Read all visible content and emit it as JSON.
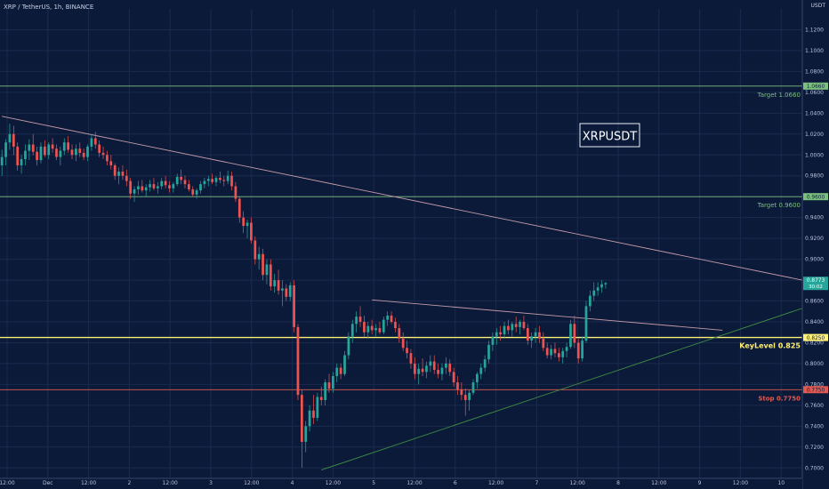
{
  "header": {
    "title": "XRP / TetherUS, 1h, BINANCE"
  },
  "axis": {
    "currency": "USDT"
  },
  "watermark": {
    "label": "XRPUSDT"
  },
  "colors": {
    "background": "#0c1a3a",
    "up": "#26a69a",
    "down": "#ef5350",
    "target": "#7bbf7e",
    "key": "#fff176",
    "stop": "#e05a52",
    "resistance": "#c49aa8",
    "support": "#3f8f43",
    "grid": "#1a2a4e",
    "axis_text": "#b9c2d9"
  },
  "chart_data": {
    "type": "candlestick",
    "y_ticks": [
      "0.7000",
      "0.7200",
      "0.7400",
      "0.7600",
      "0.7800",
      "0.8000",
      "0.8200",
      "0.8400",
      "0.8600",
      "0.8800",
      "0.9000",
      "0.9200",
      "0.9400",
      "0.9600",
      "0.9800",
      "1.0000",
      "1.0200",
      "1.0400",
      "1.0600",
      "1.0800",
      "1.1000",
      "1.1200"
    ],
    "ylim": [
      0.69,
      1.14
    ],
    "x_tick_labels": [
      "12:00",
      "Dec",
      "12:00",
      "2",
      "12:00",
      "3",
      "12:00",
      "4",
      "12:00",
      "5",
      "12:00",
      "6",
      "12:00",
      "7",
      "12:00",
      "8",
      "12:00",
      "9",
      "12:00",
      "10"
    ],
    "x_range_bars": 206,
    "levels": [
      {
        "name": "Target 1.0660",
        "price": 1.066,
        "badge": "1.0660",
        "color_key": "target"
      },
      {
        "name": "Target 0.9600",
        "price": 0.96,
        "badge": "0.9600",
        "color_key": "target"
      },
      {
        "name": "KeyLevel 0.825",
        "price": 0.825,
        "badge": "0.8250",
        "color_key": "key"
      },
      {
        "name": "Stop 0.7750",
        "price": 0.775,
        "badge": "0.7750",
        "color_key": "stop"
      }
    ],
    "trendlines": [
      {
        "name": "descending-resistance",
        "points": [
          [
            0,
            1.037
          ],
          [
            206,
            0.88
          ]
        ],
        "color_key": "resistance"
      },
      {
        "name": "ascending-support",
        "points": [
          [
            82,
            0.698
          ],
          [
            206,
            0.853
          ]
        ],
        "color_key": "support"
      },
      {
        "name": "triangle-upper",
        "points": [
          [
            95,
            0.861
          ],
          [
            185,
            0.832
          ]
        ],
        "color_key": "resistance"
      }
    ],
    "last_price": {
      "price": "0.8773",
      "countdown": "30:02",
      "value": 0.8773
    },
    "candles": [
      [
        0.99,
        1.005,
        0.98,
        0.998
      ],
      [
        0.998,
        1.015,
        0.99,
        1.012
      ],
      [
        1.012,
        1.03,
        1.005,
        1.02
      ],
      [
        1.02,
        1.028,
        1.0,
        1.008
      ],
      [
        1.008,
        1.012,
        0.985,
        0.99
      ],
      [
        0.99,
        1.0,
        0.982,
        0.996
      ],
      [
        0.996,
        1.01,
        0.99,
        1.004
      ],
      [
        1.004,
        1.015,
        0.995,
        1.01
      ],
      [
        1.01,
        1.02,
        1.0,
        1.003
      ],
      [
        1.003,
        1.008,
        0.99,
        0.995
      ],
      [
        0.995,
        1.012,
        0.992,
        1.008
      ],
      [
        1.008,
        1.014,
        0.998,
        1.0
      ],
      [
        1.0,
        1.012,
        0.996,
        1.01
      ],
      [
        1.01,
        1.016,
        1.002,
        1.006
      ],
      [
        1.006,
        1.01,
        0.995,
        0.998
      ],
      [
        0.998,
        1.008,
        0.99,
        1.004
      ],
      [
        1.004,
        1.016,
        1.0,
        1.012
      ],
      [
        1.012,
        1.018,
        1.002,
        1.005
      ],
      [
        1.005,
        1.01,
        0.996,
        1.0
      ],
      [
        1.0,
        1.01,
        0.994,
        1.006
      ],
      [
        1.006,
        1.012,
        0.998,
        1.002
      ],
      [
        1.002,
        1.006,
        0.995,
        0.998
      ],
      [
        0.998,
        1.01,
        0.994,
        1.008
      ],
      [
        1.008,
        1.02,
        1.004,
        1.016
      ],
      [
        1.016,
        1.022,
        1.006,
        1.01
      ],
      [
        1.01,
        1.014,
        0.998,
        1.002
      ],
      [
        1.002,
        1.008,
        0.996,
        1.0
      ],
      [
        1.0,
        1.004,
        0.99,
        0.994
      ],
      [
        0.994,
        1.0,
        0.986,
        0.99
      ],
      [
        0.99,
        0.992,
        0.976,
        0.98
      ],
      [
        0.98,
        0.988,
        0.972,
        0.984
      ],
      [
        0.984,
        0.99,
        0.976,
        0.98
      ],
      [
        0.98,
        0.986,
        0.97,
        0.975
      ],
      [
        0.975,
        0.978,
        0.958,
        0.963
      ],
      [
        0.963,
        0.97,
        0.955,
        0.967
      ],
      [
        0.967,
        0.975,
        0.962,
        0.97
      ],
      [
        0.97,
        0.976,
        0.964,
        0.966
      ],
      [
        0.966,
        0.972,
        0.96,
        0.969
      ],
      [
        0.969,
        0.976,
        0.965,
        0.972
      ],
      [
        0.972,
        0.978,
        0.966,
        0.968
      ],
      [
        0.968,
        0.974,
        0.963,
        0.97
      ],
      [
        0.97,
        0.978,
        0.967,
        0.975
      ],
      [
        0.975,
        0.98,
        0.968,
        0.971
      ],
      [
        0.971,
        0.975,
        0.964,
        0.968
      ],
      [
        0.968,
        0.974,
        0.964,
        0.972
      ],
      [
        0.972,
        0.982,
        0.97,
        0.979
      ],
      [
        0.979,
        0.986,
        0.972,
        0.976
      ],
      [
        0.976,
        0.98,
        0.968,
        0.972
      ],
      [
        0.972,
        0.976,
        0.965,
        0.967
      ],
      [
        0.967,
        0.97,
        0.96,
        0.962
      ],
      [
        0.962,
        0.968,
        0.958,
        0.966
      ],
      [
        0.966,
        0.975,
        0.963,
        0.972
      ],
      [
        0.972,
        0.978,
        0.968,
        0.975
      ],
      [
        0.975,
        0.98,
        0.97,
        0.977
      ],
      [
        0.977,
        0.982,
        0.972,
        0.974
      ],
      [
        0.974,
        0.98,
        0.97,
        0.978
      ],
      [
        0.978,
        0.984,
        0.973,
        0.976
      ],
      [
        0.976,
        0.98,
        0.97,
        0.975
      ],
      [
        0.975,
        0.985,
        0.972,
        0.98
      ],
      [
        0.98,
        0.984,
        0.966,
        0.97
      ],
      [
        0.97,
        0.974,
        0.955,
        0.958
      ],
      [
        0.958,
        0.96,
        0.935,
        0.94
      ],
      [
        0.94,
        0.946,
        0.925,
        0.932
      ],
      [
        0.932,
        0.938,
        0.92,
        0.935
      ],
      [
        0.935,
        0.94,
        0.915,
        0.918
      ],
      [
        0.918,
        0.922,
        0.895,
        0.9
      ],
      [
        0.9,
        0.912,
        0.89,
        0.905
      ],
      [
        0.905,
        0.91,
        0.88,
        0.885
      ],
      [
        0.885,
        0.9,
        0.876,
        0.895
      ],
      [
        0.895,
        0.9,
        0.87,
        0.874
      ],
      [
        0.874,
        0.886,
        0.868,
        0.88
      ],
      [
        0.88,
        0.89,
        0.866,
        0.87
      ],
      [
        0.87,
        0.88,
        0.855,
        0.872
      ],
      [
        0.872,
        0.876,
        0.86,
        0.864
      ],
      [
        0.864,
        0.878,
        0.86,
        0.875
      ],
      [
        0.875,
        0.88,
        0.83,
        0.835
      ],
      [
        0.835,
        0.838,
        0.765,
        0.77
      ],
      [
        0.77,
        0.775,
        0.7,
        0.725
      ],
      [
        0.725,
        0.745,
        0.715,
        0.74
      ],
      [
        0.74,
        0.76,
        0.735,
        0.755
      ],
      [
        0.755,
        0.77,
        0.742,
        0.748
      ],
      [
        0.748,
        0.772,
        0.745,
        0.768
      ],
      [
        0.768,
        0.778,
        0.76,
        0.765
      ],
      [
        0.765,
        0.785,
        0.76,
        0.782
      ],
      [
        0.782,
        0.79,
        0.772,
        0.776
      ],
      [
        0.776,
        0.792,
        0.772,
        0.788
      ],
      [
        0.788,
        0.8,
        0.782,
        0.796
      ],
      [
        0.796,
        0.8,
        0.785,
        0.79
      ],
      [
        0.79,
        0.812,
        0.788,
        0.808
      ],
      [
        0.808,
        0.83,
        0.804,
        0.826
      ],
      [
        0.826,
        0.842,
        0.82,
        0.838
      ],
      [
        0.838,
        0.85,
        0.83,
        0.845
      ],
      [
        0.845,
        0.855,
        0.835,
        0.84
      ],
      [
        0.84,
        0.846,
        0.826,
        0.83
      ],
      [
        0.83,
        0.84,
        0.824,
        0.836
      ],
      [
        0.836,
        0.842,
        0.828,
        0.832
      ],
      [
        0.832,
        0.838,
        0.826,
        0.834
      ],
      [
        0.834,
        0.84,
        0.828,
        0.83
      ],
      [
        0.83,
        0.845,
        0.828,
        0.842
      ],
      [
        0.842,
        0.85,
        0.836,
        0.846
      ],
      [
        0.846,
        0.85,
        0.838,
        0.84
      ],
      [
        0.84,
        0.844,
        0.83,
        0.834
      ],
      [
        0.834,
        0.838,
        0.82,
        0.824
      ],
      [
        0.824,
        0.83,
        0.812,
        0.815
      ],
      [
        0.815,
        0.822,
        0.805,
        0.81
      ],
      [
        0.81,
        0.814,
        0.795,
        0.8
      ],
      [
        0.8,
        0.806,
        0.785,
        0.79
      ],
      [
        0.79,
        0.8,
        0.78,
        0.795
      ],
      [
        0.795,
        0.805,
        0.788,
        0.792
      ],
      [
        0.792,
        0.802,
        0.786,
        0.798
      ],
      [
        0.798,
        0.808,
        0.792,
        0.802
      ],
      [
        0.802,
        0.808,
        0.79,
        0.794
      ],
      [
        0.794,
        0.8,
        0.786,
        0.79
      ],
      [
        0.79,
        0.8,
        0.784,
        0.796
      ],
      [
        0.796,
        0.806,
        0.79,
        0.8
      ],
      [
        0.8,
        0.804,
        0.788,
        0.792
      ],
      [
        0.792,
        0.796,
        0.778,
        0.782
      ],
      [
        0.782,
        0.788,
        0.77,
        0.775
      ],
      [
        0.775,
        0.782,
        0.765,
        0.77
      ],
      [
        0.77,
        0.776,
        0.75,
        0.765
      ],
      [
        0.765,
        0.775,
        0.755,
        0.772
      ],
      [
        0.772,
        0.785,
        0.77,
        0.782
      ],
      [
        0.782,
        0.792,
        0.776,
        0.79
      ],
      [
        0.79,
        0.8,
        0.785,
        0.796
      ],
      [
        0.796,
        0.808,
        0.792,
        0.804
      ],
      [
        0.804,
        0.822,
        0.8,
        0.818
      ],
      [
        0.818,
        0.83,
        0.812,
        0.826
      ],
      [
        0.826,
        0.834,
        0.818,
        0.83
      ],
      [
        0.83,
        0.836,
        0.822,
        0.828
      ],
      [
        0.828,
        0.84,
        0.824,
        0.836
      ],
      [
        0.836,
        0.842,
        0.828,
        0.832
      ],
      [
        0.832,
        0.84,
        0.826,
        0.838
      ],
      [
        0.838,
        0.845,
        0.83,
        0.835
      ],
      [
        0.835,
        0.842,
        0.828,
        0.84
      ],
      [
        0.84,
        0.846,
        0.832,
        0.834
      ],
      [
        0.834,
        0.838,
        0.818,
        0.822
      ],
      [
        0.822,
        0.83,
        0.815,
        0.826
      ],
      [
        0.826,
        0.834,
        0.82,
        0.83
      ],
      [
        0.83,
        0.836,
        0.82,
        0.824
      ],
      [
        0.824,
        0.83,
        0.812,
        0.815
      ],
      [
        0.815,
        0.82,
        0.805,
        0.808
      ],
      [
        0.808,
        0.818,
        0.804,
        0.814
      ],
      [
        0.814,
        0.82,
        0.806,
        0.81
      ],
      [
        0.81,
        0.815,
        0.802,
        0.806
      ],
      [
        0.806,
        0.815,
        0.8,
        0.812
      ],
      [
        0.812,
        0.82,
        0.806,
        0.816
      ],
      [
        0.816,
        0.842,
        0.814,
        0.838
      ],
      [
        0.838,
        0.846,
        0.815,
        0.82
      ],
      [
        0.82,
        0.824,
        0.8,
        0.805
      ],
      [
        0.805,
        0.826,
        0.802,
        0.822
      ],
      [
        0.822,
        0.86,
        0.82,
        0.855
      ],
      [
        0.855,
        0.87,
        0.85,
        0.865
      ],
      [
        0.865,
        0.878,
        0.86,
        0.87
      ],
      [
        0.87,
        0.878,
        0.865,
        0.873
      ],
      [
        0.873,
        0.88,
        0.868,
        0.876
      ],
      [
        0.876,
        0.878,
        0.872,
        0.8773
      ]
    ]
  }
}
